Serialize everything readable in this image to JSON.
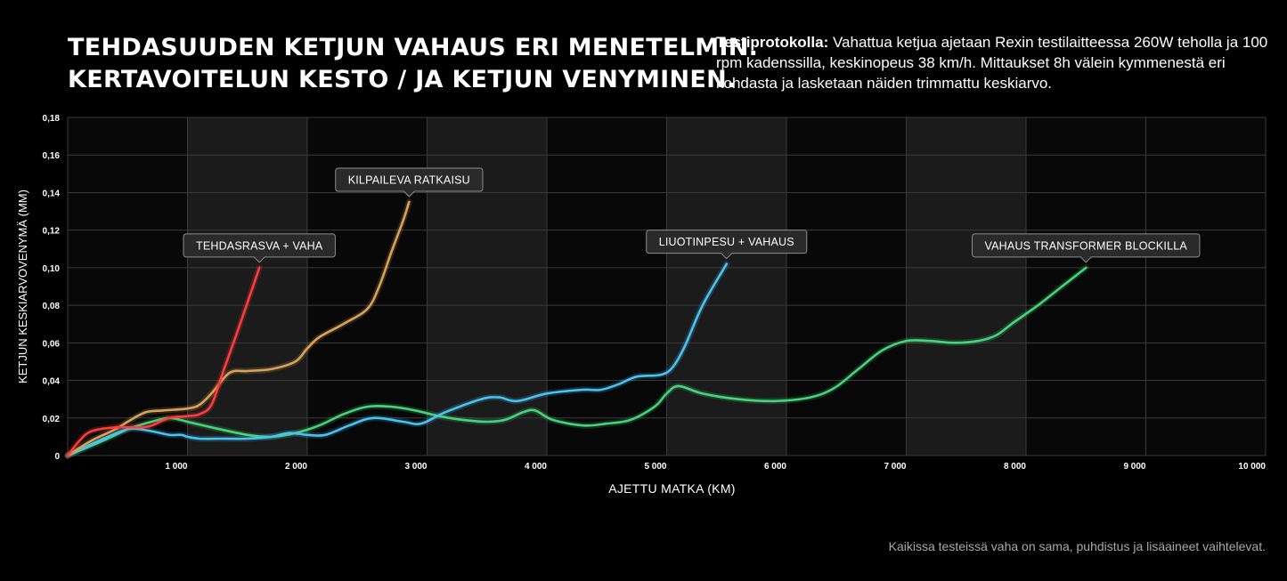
{
  "header": {
    "title_lines": [
      "TEHDASUUDEN KETJUN VAHAUS ERI MENETELMIN.",
      "KERTAVOITELUN KESTO / JA KETJUN VENYMINEN."
    ],
    "protocol_label": "Testiprotokolla:",
    "protocol_text": " Vahattua ketjua ajetaan Rexin testilaitteessa 260W teholla ja 100 rpm kadenssilla, keskinopeus 38 km/h. Mittaukset 8h välein kymmenestä eri kohdasta ja lasketaan näiden trimmattu keskiarvo."
  },
  "footnote": "Kaikissa testeissä vaha on sama, puhdistus ja lisäaineet vaihtelevat.",
  "chart_data": {
    "type": "line",
    "xlabel": "AJETTU MATKA (KM)",
    "ylabel": "KETJUN KESKIARVOVENYMÄ (MM)",
    "xlim": [
      0,
      10000
    ],
    "ylim": [
      0,
      0.18
    ],
    "x_ticks": [
      1000,
      2000,
      3000,
      4000,
      5000,
      6000,
      7000,
      8000,
      9000,
      10000
    ],
    "x_tick_labels": [
      "1 000",
      "2 000",
      "3 000",
      "4 000",
      "5 000",
      "6 000",
      "7 000",
      "8 000",
      "9 000",
      "10 000"
    ],
    "y_ticks": [
      0,
      0.02,
      0.04,
      0.06,
      0.08,
      0.1,
      0.12,
      0.14,
      0.16,
      0.18
    ],
    "y_tick_labels": [
      "0",
      "0,02",
      "0,04",
      "0,06",
      "0,08",
      "0,10",
      "0,12",
      "0,14",
      "0,16",
      "0,18"
    ],
    "grid": true,
    "series": [
      {
        "name": "TEHDASRASVA + VAHA",
        "color": "#ff3b3b",
        "x": [
          0,
          100,
          200,
          400,
          600,
          700,
          850,
          1000,
          1100,
          1200,
          1300,
          1450,
          1600
        ],
        "y": [
          0,
          0.008,
          0.013,
          0.015,
          0.015,
          0.016,
          0.02,
          0.021,
          0.022,
          0.027,
          0.045,
          0.072,
          0.1
        ]
      },
      {
        "name": "KILPAILEVA RATKAISU",
        "color": "#d9a25a",
        "x": [
          0,
          200,
          400,
          500,
          650,
          800,
          1000,
          1100,
          1200,
          1350,
          1500,
          1700,
          1900,
          2000,
          2100,
          2300,
          2500,
          2600,
          2700,
          2800,
          2850
        ],
        "y": [
          0,
          0.008,
          0.014,
          0.018,
          0.023,
          0.024,
          0.025,
          0.027,
          0.033,
          0.044,
          0.045,
          0.046,
          0.05,
          0.057,
          0.063,
          0.07,
          0.078,
          0.09,
          0.108,
          0.125,
          0.135
        ]
      },
      {
        "name": "LIUOTINPESU + VAHAUS",
        "color": "#49c2f2",
        "x": [
          0,
          300,
          500,
          600,
          700,
          850,
          950,
          1000,
          1100,
          1300,
          1500,
          1700,
          1850,
          2000,
          2150,
          2350,
          2550,
          2800,
          2950,
          3150,
          3450,
          3600,
          3750,
          4000,
          4300,
          4450,
          4600,
          4750,
          4950,
          5050,
          5150,
          5300,
          5500
        ],
        "y": [
          0,
          0.009,
          0.014,
          0.014,
          0.013,
          0.011,
          0.011,
          0.01,
          0.009,
          0.009,
          0.009,
          0.01,
          0.012,
          0.011,
          0.011,
          0.016,
          0.02,
          0.018,
          0.017,
          0.023,
          0.03,
          0.031,
          0.029,
          0.033,
          0.035,
          0.035,
          0.038,
          0.042,
          0.043,
          0.047,
          0.058,
          0.08,
          0.102
        ]
      },
      {
        "name": "VAHAUS TRANSFORMER BLOCKILLA",
        "color": "#45d47b",
        "x": [
          0,
          300,
          500,
          700,
          850,
          1000,
          1200,
          1500,
          1700,
          1900,
          2100,
          2300,
          2500,
          2700,
          2900,
          3100,
          3300,
          3500,
          3650,
          3800,
          3900,
          4050,
          4300,
          4500,
          4700,
          4900,
          5000,
          5100,
          5300,
          5600,
          5900,
          6200,
          6400,
          6600,
          6800,
          7000,
          7200,
          7400,
          7600,
          7750,
          7900,
          8100,
          8300,
          8500
        ],
        "y": [
          0,
          0.008,
          0.014,
          0.018,
          0.02,
          0.018,
          0.015,
          0.011,
          0.01,
          0.012,
          0.016,
          0.022,
          0.026,
          0.026,
          0.024,
          0.021,
          0.019,
          0.018,
          0.019,
          0.023,
          0.024,
          0.019,
          0.016,
          0.017,
          0.019,
          0.026,
          0.033,
          0.037,
          0.033,
          0.03,
          0.029,
          0.031,
          0.036,
          0.046,
          0.056,
          0.061,
          0.061,
          0.06,
          0.061,
          0.064,
          0.071,
          0.08,
          0.09,
          0.1
        ]
      }
    ]
  }
}
